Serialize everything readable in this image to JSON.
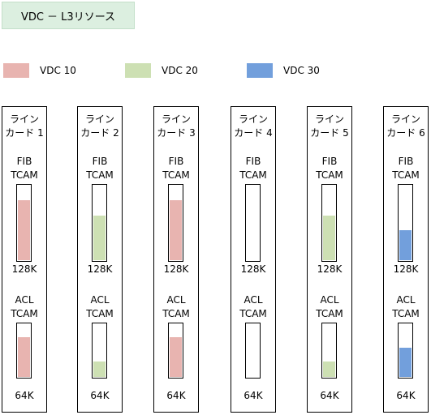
{
  "title": "VDC － L3リソース",
  "legend": [
    {
      "label": "VDC 10",
      "color": "#e8b4b0"
    },
    {
      "label": "VDC 20",
      "color": "#cde0b3"
    },
    {
      "label": "VDC 30",
      "color": "#729fdc"
    }
  ],
  "line_cards": [
    {
      "title_line1": "ライン",
      "title_line2": "カード 1",
      "fib": {
        "label_line1": "FIB",
        "label_line2": "TCAM",
        "capacity": "128K",
        "fill_fraction": 0.8,
        "vdc": "VDC 10",
        "color": "#e8b4b0"
      },
      "acl": {
        "label_line1": "ACL",
        "label_line2": "TCAM",
        "capacity": "64K",
        "fill_fraction": 0.75,
        "vdc": "VDC 10",
        "color": "#e8b4b0"
      }
    },
    {
      "title_line1": "ライン",
      "title_line2": "カード 2",
      "fib": {
        "label_line1": "FIB",
        "label_line2": "TCAM",
        "capacity": "128K",
        "fill_fraction": 0.6,
        "vdc": "VDC 20",
        "color": "#cde0b3"
      },
      "acl": {
        "label_line1": "ACL",
        "label_line2": "TCAM",
        "capacity": "64K",
        "fill_fraction": 0.3,
        "vdc": "VDC 20",
        "color": "#cde0b3"
      }
    },
    {
      "title_line1": "ライン",
      "title_line2": "カード 3",
      "fib": {
        "label_line1": "FIB",
        "label_line2": "TCAM",
        "capacity": "128K",
        "fill_fraction": 0.8,
        "vdc": "VDC 10",
        "color": "#e8b4b0"
      },
      "acl": {
        "label_line1": "ACL",
        "label_line2": "TCAM",
        "capacity": "64K",
        "fill_fraction": 0.75,
        "vdc": "VDC 10",
        "color": "#e8b4b0"
      }
    },
    {
      "title_line1": "ライン",
      "title_line2": "カード 4",
      "fib": {
        "label_line1": "FIB",
        "label_line2": "TCAM",
        "capacity": "128K",
        "fill_fraction": 0,
        "vdc": "",
        "color": "#ffffff"
      },
      "acl": {
        "label_line1": "ACL",
        "label_line2": "TCAM",
        "capacity": "64K",
        "fill_fraction": 0,
        "vdc": "",
        "color": "#ffffff"
      }
    },
    {
      "title_line1": "ライン",
      "title_line2": "カード 5",
      "fib": {
        "label_line1": "FIB",
        "label_line2": "TCAM",
        "capacity": "128K",
        "fill_fraction": 0.6,
        "vdc": "VDC 20",
        "color": "#cde0b3"
      },
      "acl": {
        "label_line1": "ACL",
        "label_line2": "TCAM",
        "capacity": "64K",
        "fill_fraction": 0.3,
        "vdc": "VDC 20",
        "color": "#cde0b3"
      }
    },
    {
      "title_line1": "ライン",
      "title_line2": "カード 6",
      "fib": {
        "label_line1": "FIB",
        "label_line2": "TCAM",
        "capacity": "128K",
        "fill_fraction": 0.4,
        "vdc": "VDC 30",
        "color": "#729fdc"
      },
      "acl": {
        "label_line1": "ACL",
        "label_line2": "TCAM",
        "capacity": "64K",
        "fill_fraction": 0.55,
        "vdc": "VDC 30",
        "color": "#729fdc"
      }
    }
  ]
}
